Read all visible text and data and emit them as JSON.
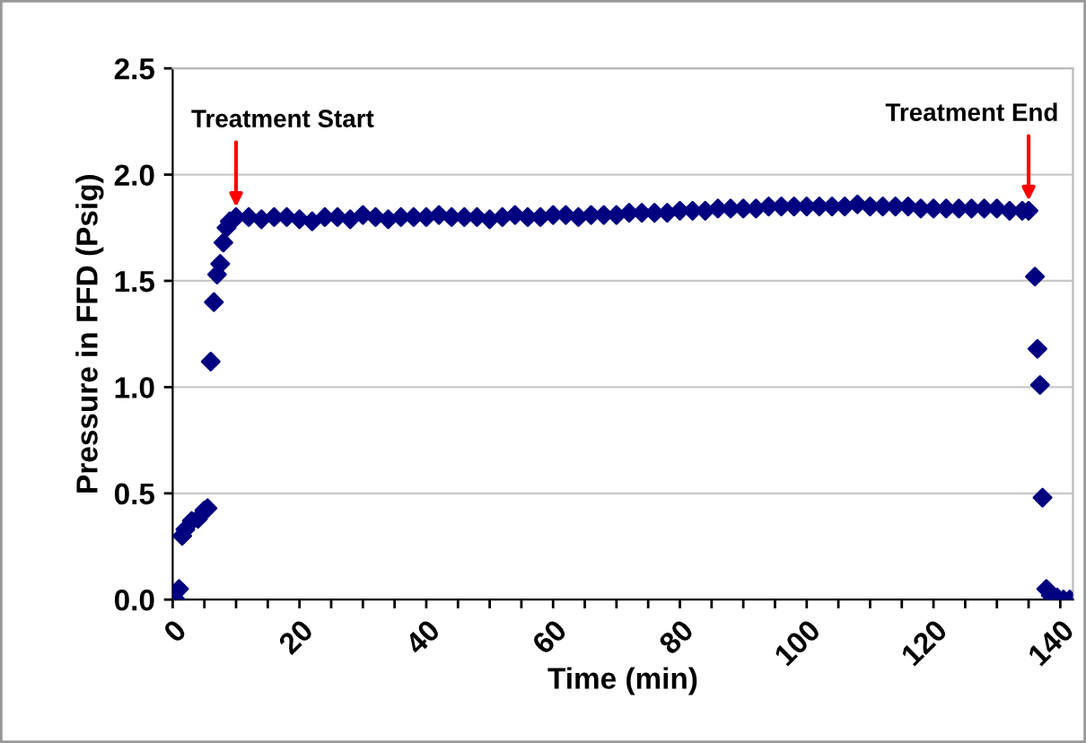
{
  "chart_data": {
    "type": "scatter",
    "xlabel": "Time (min)",
    "ylabel": "Pressure in FFD (Psig)",
    "series": [
      {
        "color": "#000080",
        "x": [
          0.5,
          1,
          1.5,
          2,
          3,
          4,
          5,
          5.5,
          6,
          6.5,
          7,
          7.5,
          8,
          8.5,
          9,
          10,
          12,
          14,
          16,
          18,
          20,
          22,
          24,
          26,
          28,
          30,
          32,
          34,
          36,
          38,
          40,
          42,
          44,
          46,
          48,
          50,
          52,
          54,
          56,
          58,
          60,
          62,
          64,
          66,
          68,
          70,
          72,
          74,
          76,
          78,
          80,
          82,
          84,
          86,
          88,
          90,
          92,
          94,
          96,
          98,
          100,
          102,
          104,
          106,
          108,
          110,
          112,
          114,
          116,
          118,
          120,
          122,
          124,
          126,
          128,
          130,
          132,
          134,
          135,
          136,
          136.4,
          136.8,
          137.2,
          137.8,
          138.5,
          139.5,
          140.5,
          141.5
        ],
        "values": [
          0.0,
          0.05,
          0.3,
          0.33,
          0.37,
          0.38,
          0.42,
          0.43,
          1.12,
          1.4,
          1.53,
          1.58,
          1.68,
          1.75,
          1.78,
          1.8,
          1.8,
          1.79,
          1.8,
          1.8,
          1.79,
          1.78,
          1.8,
          1.8,
          1.79,
          1.81,
          1.8,
          1.79,
          1.8,
          1.8,
          1.8,
          1.81,
          1.8,
          1.8,
          1.8,
          1.79,
          1.8,
          1.81,
          1.8,
          1.8,
          1.81,
          1.81,
          1.8,
          1.81,
          1.81,
          1.81,
          1.82,
          1.82,
          1.82,
          1.82,
          1.83,
          1.83,
          1.83,
          1.84,
          1.84,
          1.84,
          1.84,
          1.85,
          1.85,
          1.85,
          1.85,
          1.85,
          1.85,
          1.85,
          1.86,
          1.85,
          1.85,
          1.85,
          1.85,
          1.84,
          1.84,
          1.84,
          1.84,
          1.84,
          1.84,
          1.84,
          1.83,
          1.83,
          1.83,
          1.52,
          1.18,
          1.01,
          0.48,
          0.05,
          0.02,
          0.01,
          0.0,
          0.0
        ]
      }
    ],
    "marker": "diamond",
    "grid": "y",
    "xlim": [
      0,
      142
    ],
    "ylim": [
      0,
      2.5
    ],
    "xticks": [
      0,
      {
        "value": 5,
        "label": null
      },
      {
        "value": 10,
        "label": null
      },
      {
        "value": 15,
        "label": null
      },
      20,
      {
        "value": 25,
        "label": null
      },
      {
        "value": 30,
        "label": null
      },
      {
        "value": 35,
        "label": null
      },
      40,
      {
        "value": 45,
        "label": null
      },
      {
        "value": 50,
        "label": null
      },
      {
        "value": 55,
        "label": null
      },
      60,
      {
        "value": 65,
        "label": null
      },
      {
        "value": 70,
        "label": null
      },
      {
        "value": 75,
        "label": null
      },
      80,
      {
        "value": 85,
        "label": null
      },
      {
        "value": 90,
        "label": null
      },
      {
        "value": 95,
        "label": null
      },
      100,
      {
        "value": 105,
        "label": null
      },
      {
        "value": 110,
        "label": null
      },
      {
        "value": 115,
        "label": null
      },
      120,
      {
        "value": 125,
        "label": null
      },
      {
        "value": 130,
        "label": null
      },
      {
        "value": 135,
        "label": null
      },
      140
    ],
    "yticks": [
      {
        "value": 0,
        "label": "0.0"
      },
      {
        "value": 0.5,
        "label": "0.5"
      },
      {
        "value": 1,
        "label": "1.0"
      },
      {
        "value": 1.5,
        "label": "1.5"
      },
      {
        "value": 2,
        "label": "2.0"
      },
      {
        "value": 2.5,
        "label": "2.5"
      }
    ],
    "annotations": [
      {
        "text": "Treatment Start",
        "x": 10,
        "y": 1.8
      },
      {
        "text": "Treatment End",
        "x": 135,
        "y": 1.83
      }
    ]
  }
}
